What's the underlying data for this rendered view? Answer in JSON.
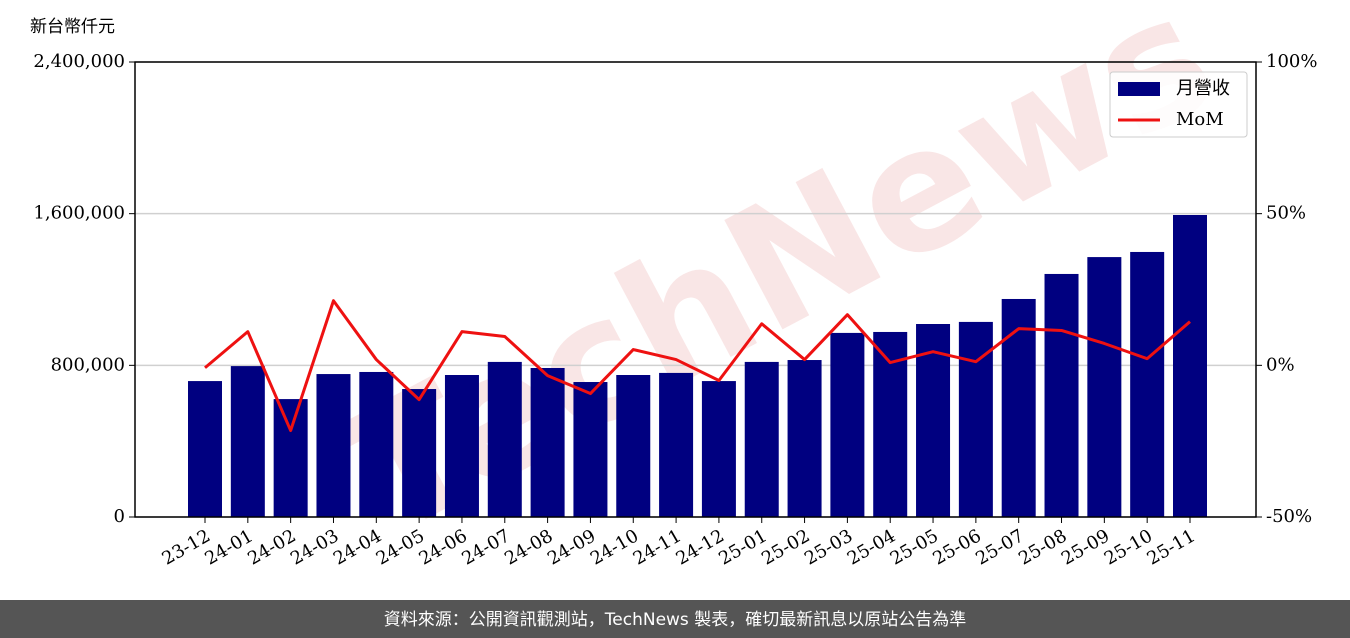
{
  "chart_data": {
    "type": "bar_line",
    "y_label": "新台幣仟元",
    "watermark": "TechNews",
    "source": "資料來源：公開資訊觀測站，TechNews 製表，確切最新訊息以原站公告為準",
    "categories": [
      "23-12",
      "24-01",
      "24-02",
      "24-03",
      "24-04",
      "24-05",
      "24-06",
      "24-07",
      "24-08",
      "24-09",
      "24-10",
      "24-11",
      "24-12",
      "25-01",
      "25-02",
      "25-03",
      "25-04",
      "25-05",
      "25-06",
      "25-07",
      "25-08",
      "25-09",
      "25-10",
      "25-11"
    ],
    "series": [
      {
        "name": "月營收",
        "type": "bar",
        "color": "#000080",
        "values": [
          717000,
          796000,
          622000,
          754000,
          765000,
          675000,
          749000,
          818000,
          786000,
          712000,
          749000,
          760000,
          717000,
          818000,
          828000,
          971000,
          976000,
          1018000,
          1029000,
          1150000,
          1282000,
          1371000,
          1398000,
          1593000
        ]
      },
      {
        "name": "MoM",
        "type": "line",
        "axis": "y2",
        "color": "#ee1111",
        "values": [
          -0.8,
          11.1,
          -21.5,
          21.3,
          1.9,
          -11.3,
          11.1,
          9.5,
          -3.4,
          -9.3,
          5.2,
          1.9,
          -5.0,
          13.7,
          1.9,
          16.7,
          0.9,
          4.5,
          1.2,
          12.1,
          11.5,
          7.2,
          2.2,
          14.4
        ]
      }
    ],
    "ylim": [
      0,
      2400000
    ],
    "yticks": [
      0,
      {
        "value": 800000,
        "label": "800,000"
      },
      {
        "value": 1600000,
        "label": "1,600,000"
      },
      {
        "value": 2400000,
        "label": "2,400,000"
      }
    ],
    "y2lim": [
      -50,
      100
    ],
    "y2ticks": [
      {
        "value": -50,
        "label": "-50%"
      },
      {
        "value": 0,
        "label": "0%"
      },
      {
        "value": 50,
        "label": "50%"
      },
      {
        "value": 100,
        "label": "100%"
      }
    ],
    "grid": true,
    "legend": "upper right"
  }
}
